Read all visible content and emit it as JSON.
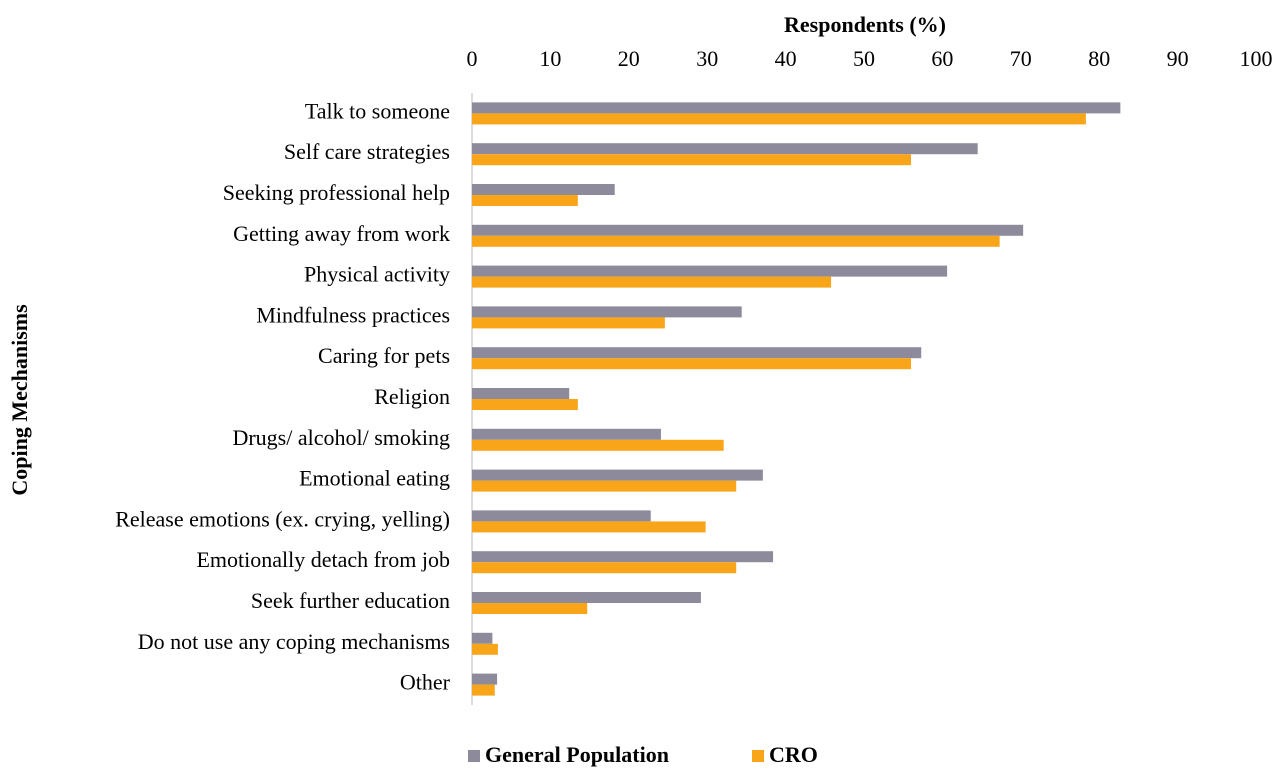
{
  "chart_data": {
    "type": "hbar",
    "title": "Respondents (%)",
    "y_label": "Coping Mechanisms",
    "categories": [
      "Talk to someone",
      "Self care strategies",
      "Seeking professional help",
      "Getting away from work",
      "Physical activity",
      "Mindfulness practices",
      "Caring for pets",
      "Religion",
      "Drugs/ alcohol/ smoking",
      "Emotional eating",
      "Release emotions (ex. crying, yelling)",
      "Emotionally detach from job",
      "Seek further education",
      "Do not use any coping mechanisms",
      "Other"
    ],
    "series": [
      {
        "name": "General Population",
        "color": "#8c8a9b",
        "values": [
          82.7,
          64.5,
          18.2,
          70.3,
          60.6,
          34.4,
          57.3,
          12.4,
          24.1,
          37.1,
          22.8,
          38.4,
          29.2,
          2.6,
          3.2
        ]
      },
      {
        "name": "CRO",
        "color": "#f9a51a",
        "values": [
          78.3,
          56,
          13.5,
          67.3,
          45.8,
          24.6,
          56,
          13.5,
          32.1,
          33.7,
          29.8,
          33.7,
          14.7,
          3.3,
          2.9
        ]
      }
    ],
    "xlim": [
      0,
      100
    ],
    "xticks": [
      0,
      10,
      20,
      30,
      40,
      50,
      60,
      70,
      80,
      90,
      100
    ],
    "legend": "bottom"
  }
}
